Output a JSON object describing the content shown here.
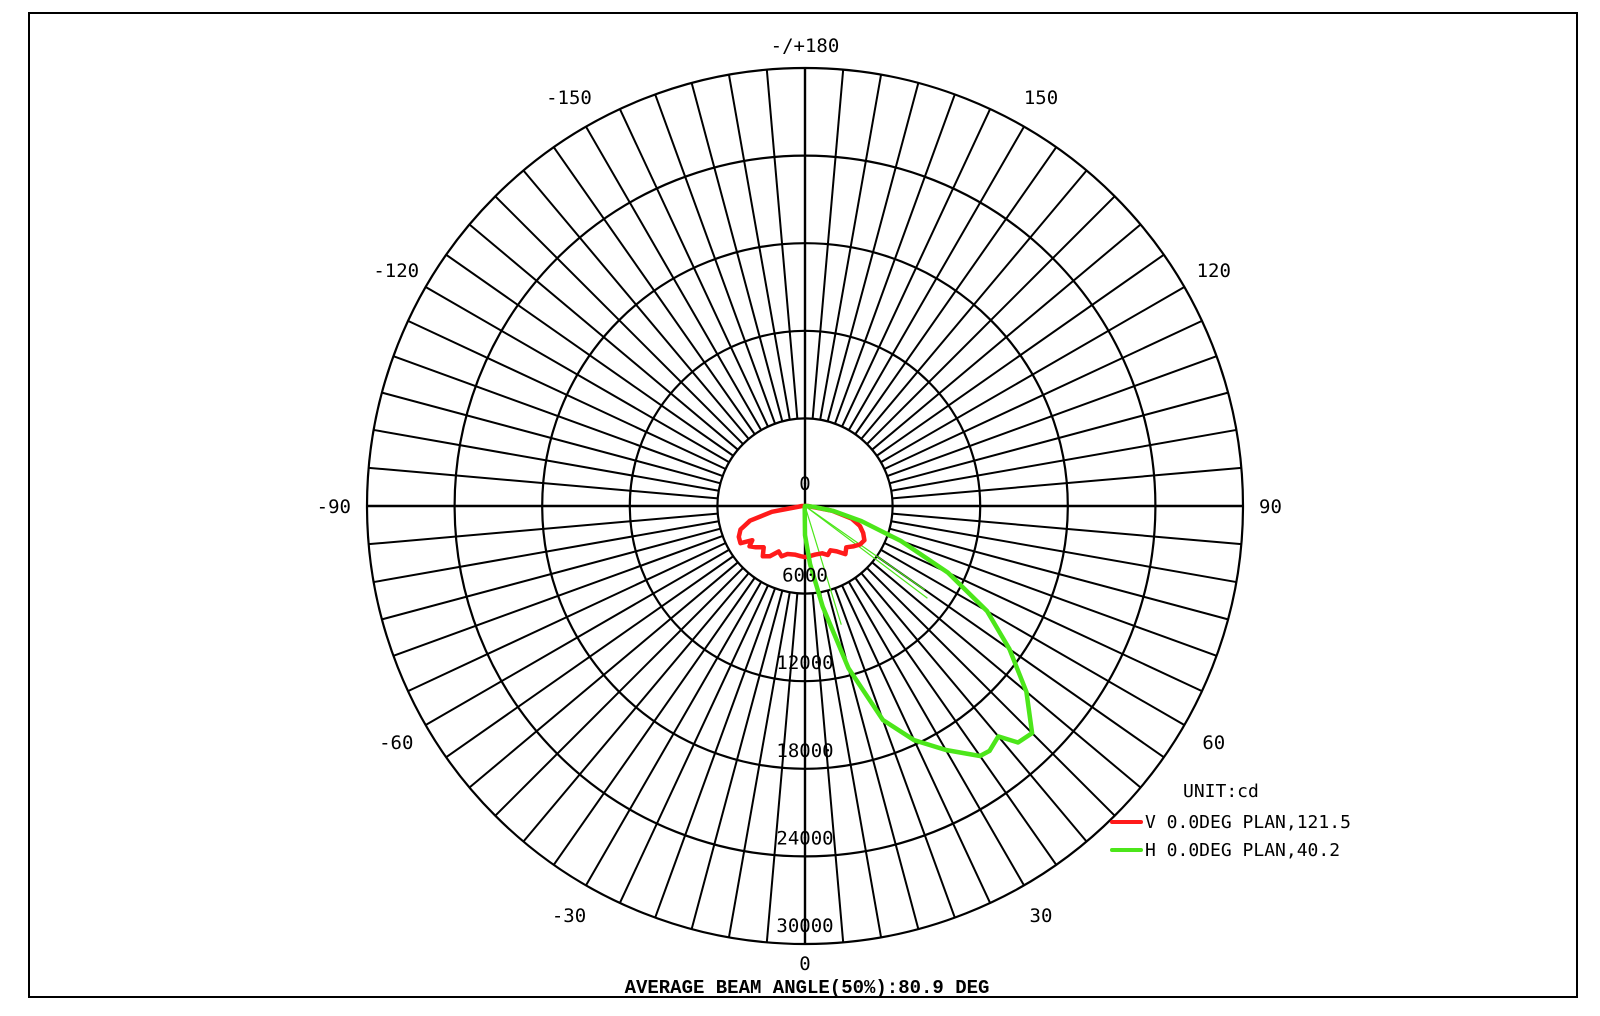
{
  "chart_data": {
    "type": "polar",
    "unit_label": "UNIT:cd",
    "caption": "AVERAGE BEAM ANGLE(50%):80.9 DEG",
    "angle_labels": [
      {
        "angle": 180,
        "text": "-/+180"
      },
      {
        "angle": -150,
        "text": "-150"
      },
      {
        "angle": 150,
        "text": "150"
      },
      {
        "angle": -120,
        "text": "-120"
      },
      {
        "angle": 120,
        "text": "120"
      },
      {
        "angle": -90,
        "text": "-90"
      },
      {
        "angle": 90,
        "text": "90"
      },
      {
        "angle": -60,
        "text": "-60"
      },
      {
        "angle": 60,
        "text": "60"
      },
      {
        "angle": -30,
        "text": "-30"
      },
      {
        "angle": 30,
        "text": "30"
      },
      {
        "angle": 0,
        "text": "0"
      }
    ],
    "radial_ticks": [
      "0",
      "6000",
      "12000",
      "18000",
      "24000",
      "30000"
    ],
    "rmax": 30000,
    "angular_step": 5,
    "series": [
      {
        "name": "V 0.0DEG PLAN,121.5",
        "color": "#ff1a1a",
        "points": [
          [
            -90,
            200
          ],
          [
            -80,
            2300
          ],
          [
            -75,
            3900
          ],
          [
            -70,
            4700
          ],
          [
            -65,
            5000
          ],
          [
            -60,
            5100
          ],
          [
            -57,
            4300
          ],
          [
            -54,
            4700
          ],
          [
            -50,
            4400
          ],
          [
            -45,
            4000
          ],
          [
            -40,
            4500
          ],
          [
            -35,
            4200
          ],
          [
            -30,
            3600
          ],
          [
            -25,
            3800
          ],
          [
            -20,
            3500
          ],
          [
            -12,
            3400
          ],
          [
            -5,
            3450
          ],
          [
            0,
            3500
          ],
          [
            5,
            3450
          ],
          [
            12,
            3400
          ],
          [
            20,
            3450
          ],
          [
            25,
            3700
          ],
          [
            30,
            3500
          ],
          [
            35,
            3800
          ],
          [
            40,
            4300
          ],
          [
            45,
            4000
          ],
          [
            50,
            4300
          ],
          [
            55,
            4600
          ],
          [
            60,
            4700
          ],
          [
            65,
            4400
          ],
          [
            70,
            4000
          ],
          [
            75,
            3300
          ],
          [
            80,
            1900
          ],
          [
            90,
            200
          ]
        ]
      },
      {
        "name": "H 0.0DEG PLAN,40.2",
        "color": "#4ce61a",
        "points": [
          [
            -10,
            100
          ],
          [
            0,
            2000
          ],
          [
            5,
            4000
          ],
          [
            10,
            7000
          ],
          [
            15,
            11500
          ],
          [
            20,
            15600
          ],
          [
            25,
            17700
          ],
          [
            30,
            19300
          ],
          [
            35,
            20900
          ],
          [
            37,
            21000
          ],
          [
            40,
            20600
          ],
          [
            42,
            21800
          ],
          [
            45,
            22000
          ],
          [
            50,
            19800
          ],
          [
            55,
            17100
          ],
          [
            60,
            14400
          ],
          [
            65,
            10800
          ],
          [
            70,
            7000
          ],
          [
            75,
            4000
          ],
          [
            80,
            2000
          ],
          [
            85,
            600
          ],
          [
            90,
            100
          ]
        ]
      }
    ],
    "reference_lines": [
      {
        "angle": 17,
        "r": 8500,
        "color": "#4ce61a"
      },
      {
        "angle": 53,
        "r": 10500,
        "color": "#4ce61a"
      },
      {
        "angle": 55,
        "r": 10000,
        "color": "#4ce61a"
      }
    ]
  }
}
